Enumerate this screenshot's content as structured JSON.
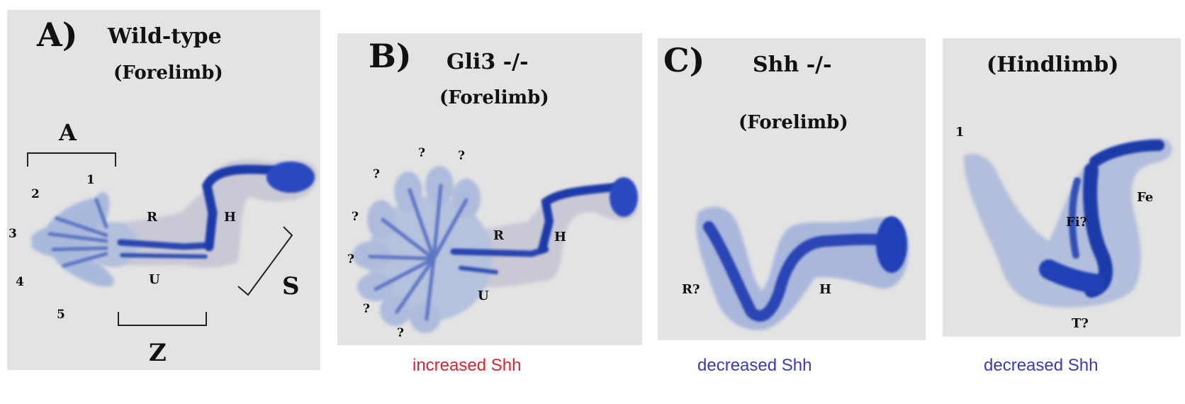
{
  "colors": {
    "background": "#ffffff",
    "panel": "#e3e3e3",
    "stain_dark": "#1f3aa8",
    "stain_light": "#9fb0d6",
    "caption_red": "#d9232e",
    "caption_blue": "#3a3ab8"
  },
  "panels": [
    {
      "letter": "A)",
      "title": "Wild-type",
      "subtitle": "(Forelimb)",
      "labels": {
        "zone_a": "A",
        "zone_z": "Z",
        "zone_s": "S",
        "digit_1": "1",
        "digit_2": "2",
        "digit_3": "3",
        "digit_4": "4",
        "digit_5": "5",
        "radius": "R",
        "ulna": "U",
        "humerus": "H"
      }
    },
    {
      "letter": "B)",
      "title": "Gli3 -/-",
      "subtitle": "(Forelimb)",
      "labels": {
        "q": "?",
        "radius": "R",
        "ulna": "U",
        "humerus": "H"
      },
      "caption": "increased Shh"
    },
    {
      "letter": "C)",
      "title": "Shh -/-",
      "subtitle": "(Forelimb)",
      "labels": {
        "radius": "R?",
        "humerus": "H"
      },
      "caption": "decreased Shh"
    },
    {
      "title": "(Hindlimb)",
      "labels": {
        "digit": "1",
        "fibula": "Fi?",
        "femur": "Fe",
        "tibia": "T?"
      },
      "caption": "decreased Shh"
    }
  ]
}
